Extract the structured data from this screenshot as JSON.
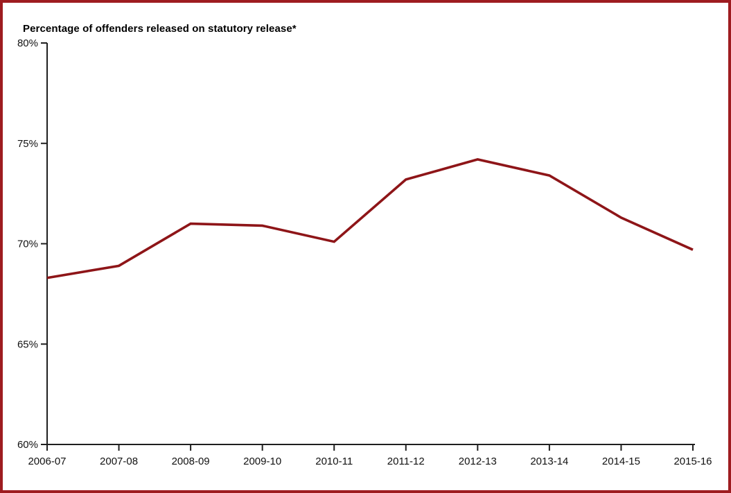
{
  "frame": {
    "border_color": "#9e1c20",
    "background_color": "#ffffff"
  },
  "chart_data": {
    "type": "line",
    "title": "Percentage of offenders released on statutory release*",
    "xlabel": "",
    "ylabel": "",
    "categories": [
      "2006-07",
      "2007-08",
      "2008-09",
      "2009-10",
      "2010-11",
      "2011-12",
      "2012-13",
      "2013-14",
      "2014-15",
      "2015-16"
    ],
    "values": [
      68.3,
      68.9,
      71.0,
      70.9,
      70.1,
      73.2,
      74.2,
      73.4,
      71.3,
      69.7
    ],
    "series_name": "Percentage of offenders released on statutory release",
    "ylim": [
      60,
      80
    ],
    "yticks": [
      {
        "value": 60,
        "label": "60%"
      },
      {
        "value": 65,
        "label": "65%"
      },
      {
        "value": 70,
        "label": "70%"
      },
      {
        "value": 75,
        "label": "75%"
      },
      {
        "value": 80,
        "label": "80%"
      }
    ],
    "grid": false,
    "legend_position": "none",
    "line_color": "#8e1518",
    "axis_color": "#1f1f1f",
    "text_color": "#111111"
  }
}
